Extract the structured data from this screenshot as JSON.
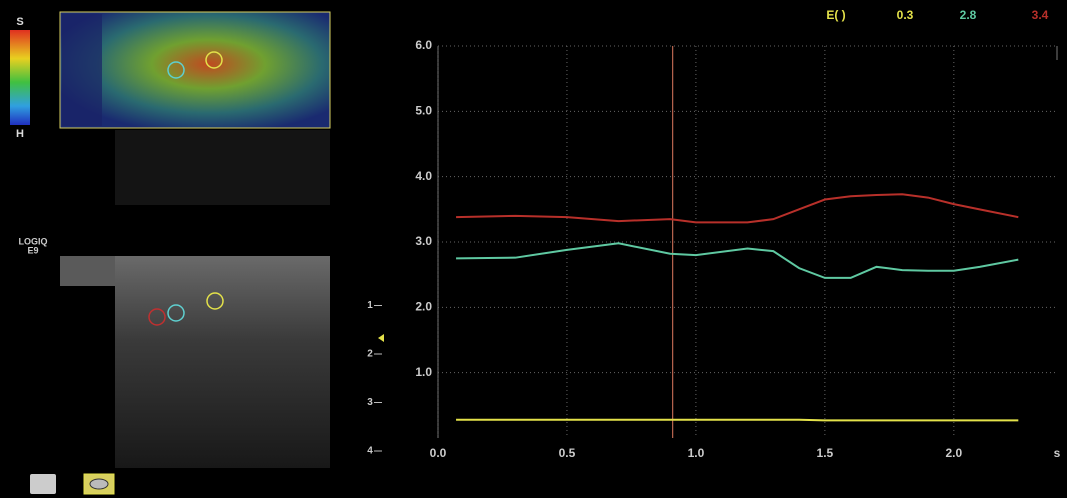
{
  "chart_data": {
    "type": "line",
    "legend_title": "E( )",
    "x": [
      0.07,
      0.3,
      0.5,
      0.7,
      0.9,
      1.0,
      1.2,
      1.3,
      1.4,
      1.5,
      1.6,
      1.7,
      1.8,
      1.9,
      2.0,
      2.1,
      2.25
    ],
    "series": [
      {
        "name": "0.3",
        "color": "#e4e24a",
        "values": [
          0.28,
          0.28,
          0.28,
          0.28,
          0.28,
          0.28,
          0.28,
          0.28,
          0.28,
          0.27,
          0.27,
          0.27,
          0.27,
          0.27,
          0.27,
          0.27,
          0.27
        ]
      },
      {
        "name": "2.8",
        "color": "#5fc9a2",
        "values": [
          2.75,
          2.76,
          2.88,
          2.98,
          2.82,
          2.8,
          2.9,
          2.86,
          2.6,
          2.45,
          2.45,
          2.62,
          2.57,
          2.56,
          2.56,
          2.62,
          2.73
        ]
      },
      {
        "name": "3.4",
        "color": "#b8302a",
        "values": [
          3.38,
          3.4,
          3.38,
          3.32,
          3.35,
          3.3,
          3.3,
          3.35,
          3.5,
          3.65,
          3.7,
          3.72,
          3.73,
          3.68,
          3.58,
          3.5,
          3.38
        ]
      }
    ],
    "cursor": 0.91,
    "x_unit": "s",
    "xlim": [
      0,
      2.4
    ],
    "ylim": [
      0,
      6
    ],
    "xticks": [
      {
        "value": 0,
        "label": "0.0"
      },
      {
        "value": 0.5,
        "label": "0.5"
      },
      {
        "value": 1,
        "label": "1.0"
      },
      {
        "value": 1.5,
        "label": "1.5"
      },
      {
        "value": 2,
        "label": "2.0"
      }
    ],
    "yticks": [
      {
        "value": 1,
        "label": "1.0"
      },
      {
        "value": 2,
        "label": "2.0"
      },
      {
        "value": 3,
        "label": "3.0"
      },
      {
        "value": 4,
        "label": "4.0"
      },
      {
        "value": 5,
        "label": "5.0"
      },
      {
        "value": 6,
        "label": "6.0"
      }
    ],
    "grid": true
  },
  "color_bar": {
    "top": "S",
    "bottom": "H"
  },
  "device": [
    "LOGIQ",
    "E9"
  ],
  "depth_ticks": [
    1,
    2,
    3,
    4
  ]
}
